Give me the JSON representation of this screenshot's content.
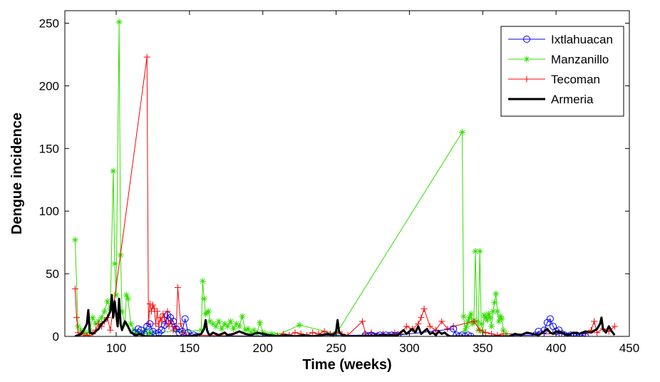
{
  "chart_data": {
    "type": "line",
    "xlabel": "Time (weeks)",
    "ylabel": "Dengue incidence",
    "xlim": [
      65,
      450
    ],
    "ylim": [
      0,
      260
    ],
    "xticks": [
      100,
      150,
      200,
      250,
      300,
      350,
      400,
      450
    ],
    "yticks": [
      0,
      50,
      100,
      150,
      200,
      250
    ],
    "grid": false,
    "legend_position": "top-right",
    "series": [
      {
        "name": "Ixtlahuacan",
        "color": "#0000ff",
        "marker": "circle",
        "x": [
          113,
          115,
          117,
          119,
          121,
          123,
          125,
          127,
          129,
          131,
          133,
          135,
          137,
          139,
          141,
          143,
          145,
          147,
          149,
          151,
          153,
          155,
          270,
          272,
          274,
          276,
          278,
          280,
          282,
          284,
          286,
          288,
          290,
          292,
          330,
          332,
          334,
          336,
          338,
          340,
          342,
          386,
          388,
          390,
          392,
          394,
          396,
          398,
          400,
          402,
          404,
          406,
          408,
          410,
          412,
          414,
          416,
          418,
          420
        ],
        "y": [
          3,
          6,
          5,
          2,
          8,
          10,
          4,
          2,
          3,
          5,
          9,
          17,
          15,
          12,
          6,
          3,
          4,
          14,
          3,
          0,
          1,
          0,
          1,
          0,
          1,
          0,
          0,
          1,
          0,
          1,
          0,
          1,
          0,
          1,
          6,
          1,
          0,
          1,
          0,
          1,
          0,
          1,
          4,
          2,
          5,
          11,
          14,
          8,
          4,
          5,
          2,
          1,
          0,
          1,
          0,
          1,
          0,
          1,
          0
        ]
      },
      {
        "name": "Manzanillo",
        "color": "#33dd00",
        "marker": "asterisk",
        "x": [
          72,
          74,
          76,
          78,
          80,
          82,
          84,
          86,
          88,
          90,
          92,
          94,
          96,
          98,
          99,
          100,
          102,
          103,
          104,
          106,
          107,
          108,
          110,
          112,
          114,
          116,
          118,
          120,
          122,
          124,
          158,
          159,
          160,
          161,
          162,
          163,
          164,
          166,
          168,
          170,
          172,
          174,
          176,
          178,
          180,
          182,
          184,
          186,
          188,
          190,
          192,
          194,
          196,
          198,
          200,
          202,
          204,
          206,
          208,
          210,
          225,
          250,
          336,
          337,
          338,
          339,
          340,
          341,
          342,
          343,
          344,
          345,
          346,
          347,
          348,
          349,
          350,
          351,
          352,
          353,
          354,
          355,
          356,
          357,
          358,
          359,
          360,
          361,
          362,
          363,
          364,
          366
        ],
        "y": [
          77,
          8,
          5,
          3,
          2,
          5,
          15,
          10,
          12,
          15,
          20,
          28,
          22,
          132,
          58,
          33,
          251,
          65,
          20,
          10,
          33,
          30,
          10,
          5,
          3,
          2,
          2,
          5,
          2,
          3,
          5,
          44,
          30,
          18,
          19,
          20,
          12,
          10,
          8,
          12,
          6,
          10,
          8,
          12,
          6,
          10,
          8,
          16,
          5,
          6,
          3,
          5,
          2,
          11,
          3,
          2,
          1,
          2,
          1,
          1,
          9,
          2,
          163,
          16,
          5,
          8,
          12,
          15,
          18,
          10,
          13,
          68,
          12,
          5,
          68,
          10,
          4,
          17,
          15,
          13,
          18,
          15,
          8,
          20,
          27,
          34,
          20,
          12,
          16,
          14,
          5,
          2
        ]
      },
      {
        "name": "Tecoman",
        "color": "#ff0000",
        "marker": "plus",
        "x": [
          72,
          73,
          74,
          75,
          76,
          78,
          80,
          82,
          84,
          86,
          88,
          90,
          92,
          94,
          96,
          121,
          122,
          123,
          124,
          125,
          126,
          127,
          128,
          129,
          130,
          131,
          132,
          133,
          134,
          135,
          136,
          137,
          138,
          139,
          140,
          141,
          142,
          144,
          146,
          148,
          210,
          214,
          218,
          222,
          226,
          230,
          234,
          238,
          242,
          246,
          250,
          254,
          258,
          268,
          270,
          274,
          278,
          282,
          286,
          290,
          294,
          298,
          302,
          306,
          308,
          310,
          314,
          318,
          322,
          326,
          330,
          344,
          348,
          352,
          356,
          360,
          364,
          420,
          424,
          426,
          428,
          432,
          436,
          440
        ],
        "y": [
          38,
          15,
          3,
          0,
          2,
          0,
          1,
          0,
          2,
          5,
          10,
          8,
          12,
          15,
          5,
          223,
          10,
          26,
          20,
          25,
          22,
          10,
          20,
          8,
          15,
          12,
          18,
          15,
          10,
          20,
          8,
          12,
          10,
          5,
          8,
          6,
          39,
          10,
          3,
          1,
          0,
          2,
          1,
          3,
          2,
          1,
          3,
          2,
          4,
          2,
          3,
          2,
          1,
          12,
          2,
          3,
          1,
          2,
          1,
          3,
          2,
          8,
          6,
          10,
          15,
          22,
          8,
          5,
          12,
          6,
          8,
          12,
          5,
          3,
          2,
          1,
          2,
          2,
          5,
          12,
          3,
          6,
          4,
          8
        ]
      },
      {
        "name": "Armeria",
        "color": "#000000",
        "marker": "none",
        "x": [
          72,
          74,
          76,
          78,
          80,
          81,
          82,
          84,
          86,
          88,
          90,
          92,
          94,
          96,
          97,
          98,
          99,
          100,
          101,
          102,
          103,
          104,
          106,
          108,
          110,
          112,
          114,
          116,
          118,
          120,
          150,
          155,
          158,
          160,
          161,
          162,
          163,
          164,
          166,
          168,
          170,
          172,
          174,
          176,
          180,
          184,
          188,
          192,
          196,
          200,
          204,
          210,
          216,
          222,
          228,
          234,
          240,
          244,
          248,
          250,
          251,
          252,
          254,
          258,
          292,
          294,
          296,
          298,
          300,
          302,
          304,
          306,
          308,
          310,
          312,
          314,
          316,
          318,
          320,
          322,
          324,
          326,
          328,
          368,
          372,
          376,
          380,
          384,
          388,
          392,
          394,
          396,
          398,
          400,
          404,
          408,
          412,
          416,
          420,
          424,
          428,
          430,
          431,
          432,
          434,
          436,
          438,
          440
        ],
        "y": [
          0,
          1,
          2,
          5,
          10,
          21,
          3,
          2,
          4,
          6,
          10,
          12,
          15,
          20,
          33,
          15,
          28,
          18,
          8,
          30,
          10,
          5,
          12,
          8,
          3,
          2,
          1,
          2,
          1,
          0,
          0,
          1,
          2,
          6,
          13,
          5,
          2,
          1,
          3,
          2,
          1,
          2,
          3,
          1,
          2,
          4,
          2,
          1,
          3,
          2,
          1,
          0,
          1,
          0,
          1,
          0,
          1,
          2,
          1,
          4,
          13,
          4,
          1,
          0,
          1,
          3,
          5,
          2,
          4,
          6,
          3,
          8,
          2,
          4,
          6,
          2,
          3,
          1,
          4,
          2,
          3,
          1,
          0,
          0,
          2,
          1,
          3,
          2,
          1,
          4,
          6,
          3,
          2,
          4,
          3,
          1,
          3,
          2,
          4,
          3,
          6,
          10,
          15,
          6,
          3,
          8,
          4,
          1
        ]
      }
    ]
  }
}
